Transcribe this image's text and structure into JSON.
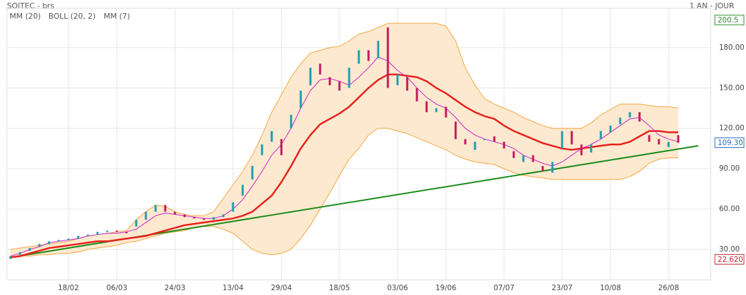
{
  "chart_data": {
    "type": "ohlc",
    "title": "SOITEC - brs",
    "period": "1 AN - JOUR",
    "categories": [
      null,
      null,
      null,
      null,
      null,
      null,
      "18/02",
      null,
      null,
      null,
      null,
      "06/03",
      null,
      null,
      null,
      null,
      null,
      "24/03",
      null,
      null,
      null,
      null,
      null,
      "13/04",
      null,
      null,
      null,
      null,
      "29/04",
      null,
      null,
      null,
      null,
      null,
      "18/05",
      null,
      null,
      null,
      null,
      null,
      "03/06",
      null,
      null,
      null,
      null,
      "19/06",
      null,
      null,
      null,
      null,
      null,
      "07/07",
      null,
      null,
      null,
      null,
      null,
      "23/07",
      null,
      null,
      null,
      null,
      "10/08",
      null,
      null,
      null,
      null,
      null,
      "26/08",
      null
    ],
    "open": [
      23,
      26,
      29,
      32,
      34,
      36,
      37,
      38,
      40,
      41,
      43,
      44,
      43,
      47,
      52,
      58,
      63,
      58,
      56,
      54,
      53,
      52,
      54,
      58,
      70,
      82,
      100,
      110,
      112,
      120,
      135,
      152,
      168,
      158,
      155,
      150,
      168,
      178,
      172,
      195,
      152,
      158,
      150,
      140,
      132,
      136,
      125,
      112,
      104,
      112,
      114,
      110,
      103,
      95,
      100,
      92,
      87,
      105,
      118,
      108,
      102,
      112,
      117,
      123,
      128,
      132,
      115,
      112,
      106,
      115
    ],
    "close": [
      25,
      28,
      31,
      34,
      36,
      37,
      38,
      40,
      41,
      43,
      44,
      43,
      42,
      52,
      58,
      63,
      58,
      56,
      54,
      53,
      52,
      54,
      56,
      65,
      78,
      92,
      108,
      118,
      100,
      130,
      148,
      165,
      160,
      152,
      148,
      165,
      178,
      170,
      185,
      150,
      160,
      148,
      140,
      132,
      135,
      128,
      112,
      108,
      110,
      112,
      110,
      105,
      98,
      100,
      95,
      88,
      95,
      118,
      108,
      100,
      108,
      118,
      122,
      128,
      132,
      125,
      110,
      108,
      110,
      109.3
    ],
    "up_color": "#1e9ab0",
    "down_color": "#c2185b",
    "band_fill": "#fde9cf",
    "series": [
      {
        "name": "MM (20)",
        "color": "#e8201b",
        "values": [
          24,
          25,
          27,
          29,
          31,
          32,
          33,
          34,
          35,
          36,
          36,
          37,
          38,
          39,
          40,
          42,
          44,
          46,
          48,
          49,
          50,
          51,
          52,
          53,
          55,
          58,
          64,
          70,
          80,
          92,
          105,
          115,
          123,
          127,
          131,
          136,
          143,
          150,
          156,
          160,
          160,
          159,
          158,
          155,
          150,
          146,
          141,
          136,
          132,
          129,
          127,
          122,
          118,
          115,
          112,
          109,
          107,
          105,
          104,
          105,
          106,
          107,
          108,
          108,
          110,
          114,
          118,
          118,
          117,
          117
        ]
      },
      {
        "name": "BOLL (20, 2)",
        "color": "#f5a742",
        "upper": [
          30,
          31,
          32,
          33,
          34,
          35,
          36,
          38,
          40,
          41,
          42,
          43,
          44,
          52,
          58,
          63,
          62,
          58,
          56,
          55,
          55,
          58,
          68,
          78,
          88,
          100,
          115,
          132,
          145,
          158,
          168,
          176,
          178,
          180,
          181,
          185,
          190,
          192,
          195,
          198,
          198,
          198,
          198,
          198,
          198,
          196,
          185,
          165,
          152,
          142,
          138,
          135,
          132,
          128,
          125,
          122,
          120,
          120,
          120,
          120,
          124,
          130,
          134,
          138,
          138,
          138,
          137,
          136,
          136,
          135
        ],
        "lower": [
          24,
          25,
          25,
          26,
          26,
          27,
          27,
          28,
          30,
          31,
          32,
          33,
          35,
          36,
          38,
          40,
          42,
          43,
          44,
          46,
          47,
          47,
          45,
          42,
          36,
          30,
          27,
          26,
          27,
          30,
          38,
          48,
          60,
          72,
          85,
          97,
          105,
          115,
          120,
          120,
          118,
          116,
          113,
          110,
          107,
          104,
          100,
          97,
          95,
          94,
          93,
          90,
          87,
          85,
          84,
          83,
          82,
          82,
          82,
          82,
          82,
          82,
          82,
          82,
          84,
          88,
          94,
          97,
          98,
          98
        ]
      },
      {
        "name": "MM (7)",
        "color": "#cc22cc",
        "values": [
          25,
          27,
          30,
          32,
          35,
          36,
          37,
          38,
          40,
          41,
          42,
          42,
          43,
          45,
          50,
          55,
          57,
          56,
          55,
          54,
          53,
          53,
          55,
          60,
          67,
          77,
          88,
          100,
          108,
          120,
          135,
          148,
          156,
          157,
          155,
          152,
          158,
          165,
          173,
          170,
          163,
          158,
          150,
          143,
          138,
          135,
          128,
          120,
          115,
          112,
          110,
          108,
          105,
          100,
          97,
          94,
          92,
          95,
          100,
          105,
          108,
          112,
          117,
          122,
          127,
          128,
          122,
          115,
          112,
          110
        ]
      }
    ],
    "trendline": {
      "color": "#1a8a1a",
      "values": [
        24,
        107
      ]
    },
    "ylim": [
      7.4,
      209.2
    ],
    "yticks": [
      {
        "value": 30,
        "label": "30.00"
      },
      {
        "value": 60,
        "label": "60.00"
      },
      {
        "value": 90,
        "label": "90.00"
      },
      {
        "value": 120,
        "label": "120.00"
      },
      {
        "value": 150,
        "label": "150.00"
      },
      {
        "value": 180,
        "label": "180.00"
      }
    ],
    "markers": [
      {
        "value": 200.5,
        "label": "200.5",
        "color": "#2e8b2e"
      },
      {
        "value": 109.3,
        "label": "109.30",
        "color": "#2b6cc4"
      },
      {
        "value": 22.62,
        "label": "22.620",
        "color": "#c0282d"
      }
    ],
    "grid": true
  }
}
